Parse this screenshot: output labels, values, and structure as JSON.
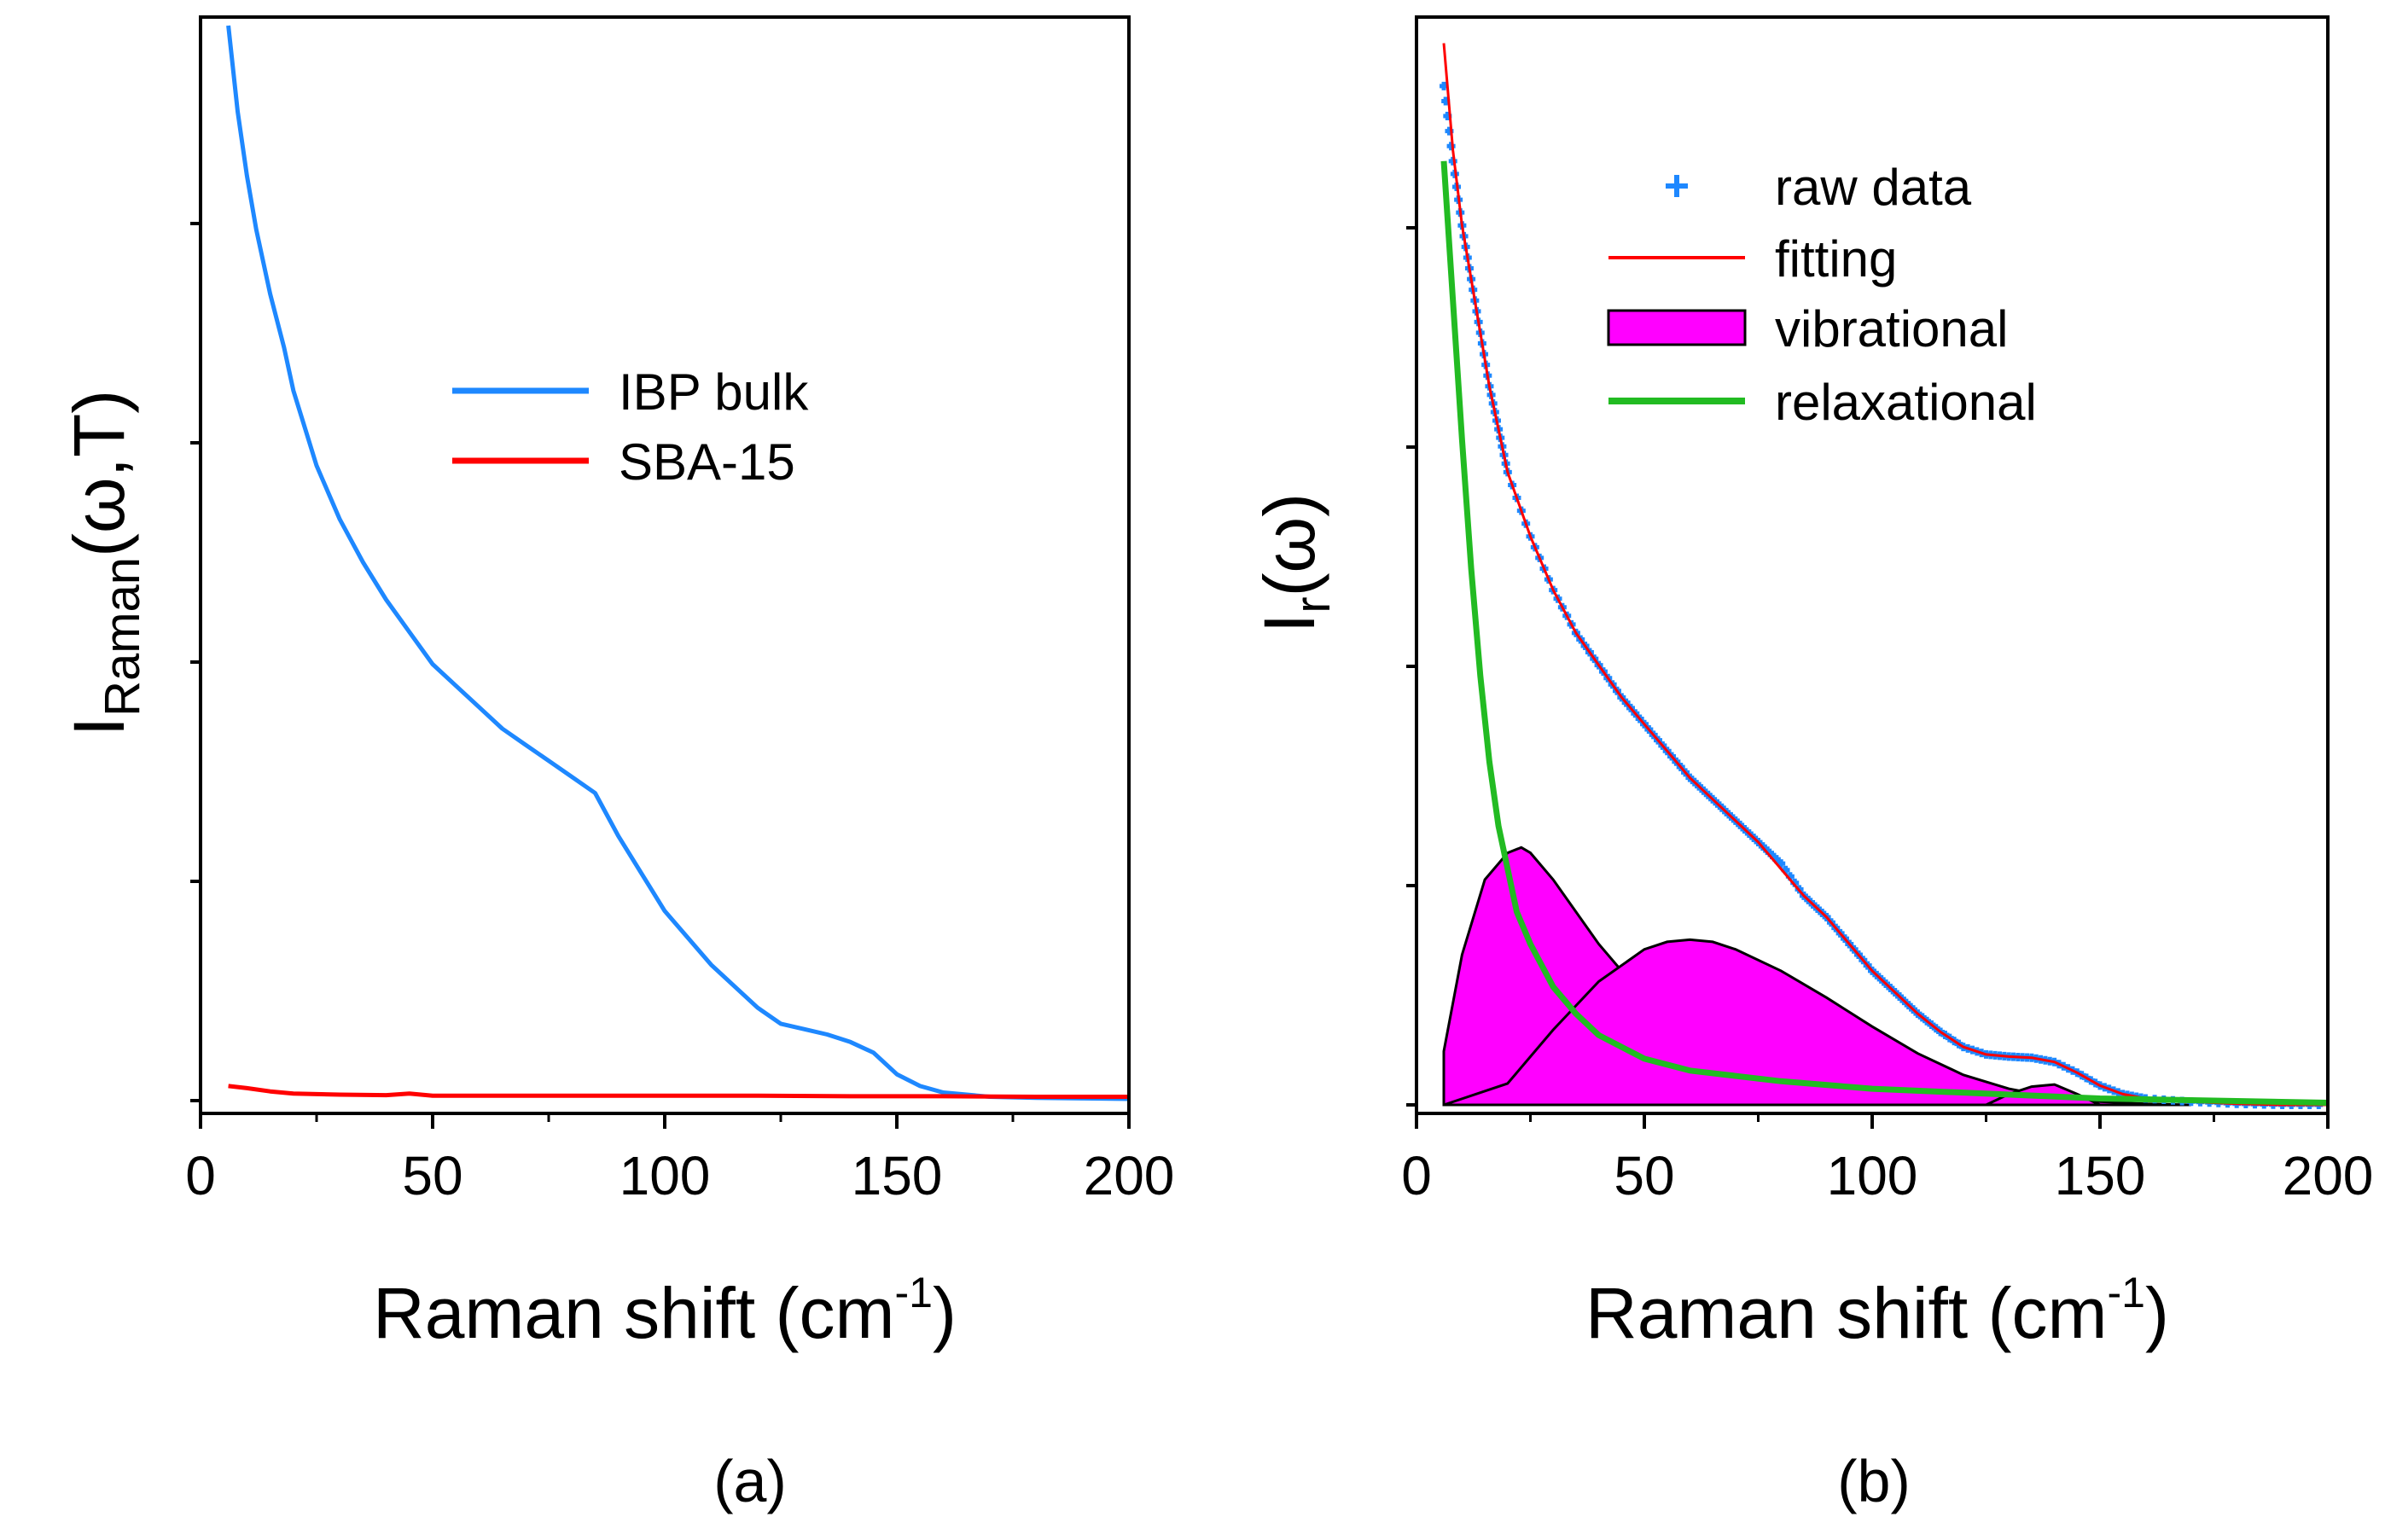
{
  "chart_data": [
    {
      "type": "line",
      "panel_label": "(a)",
      "xlabel": {
        "main": "Raman shift (cm",
        "sup": "-1",
        "close": ")"
      },
      "ylabel": {
        "main": "I",
        "sub": "Raman",
        "rest": "(ω,T)"
      },
      "xlim": [
        0,
        200
      ],
      "ylim": [
        0,
        100
      ],
      "xticks": [
        0,
        50,
        100,
        150,
        200
      ],
      "xtick_labels": [
        "0",
        "50",
        "100",
        "150",
        "200"
      ],
      "yticks_shown_without_labels": true,
      "legend_position": "center-right",
      "series": [
        {
          "name": "IBP bulk",
          "color": "#1e88ff",
          "x": [
            6,
            8,
            10,
            12,
            15,
            18,
            20,
            25,
            30,
            35,
            40,
            45,
            50,
            55,
            60,
            65,
            70,
            75,
            80,
            85,
            90,
            95,
            100,
            105,
            110,
            115,
            120,
            125,
            130,
            135,
            140,
            145,
            150,
            155,
            160,
            170,
            180,
            190,
            200
          ],
          "y": [
            100,
            92,
            86,
            81,
            75,
            70,
            66,
            59,
            54,
            50,
            46.5,
            43.5,
            40.5,
            38.5,
            36.5,
            34.5,
            33,
            31.5,
            30,
            28.5,
            24.5,
            21,
            17.5,
            15,
            12.5,
            10.5,
            8.5,
            7,
            6.5,
            6,
            5.3,
            4.3,
            2.3,
            1.2,
            0.6,
            0.2,
            0.1,
            0.05,
            0
          ]
        },
        {
          "name": "SBA-15",
          "color": "#ff0000",
          "x": [
            6,
            10,
            15,
            20,
            30,
            40,
            45,
            50,
            60,
            80,
            100,
            120,
            140,
            160,
            180,
            200
          ],
          "y": [
            1.2,
            1.0,
            0.7,
            0.5,
            0.4,
            0.35,
            0.5,
            0.3,
            0.3,
            0.3,
            0.3,
            0.3,
            0.25,
            0.25,
            0.2,
            0.2
          ]
        }
      ]
    },
    {
      "type": "line",
      "panel_label": "(b)",
      "xlabel": {
        "main": "Raman shift (cm",
        "sup": "-1",
        "close": ")"
      },
      "ylabel": {
        "main": "I",
        "sub": "r",
        "rest": "(ω)"
      },
      "xlim": [
        0,
        200
      ],
      "ylim": [
        0,
        100
      ],
      "xticks": [
        0,
        50,
        100,
        150,
        200
      ],
      "xtick_labels": [
        "0",
        "50",
        "100",
        "150",
        "200"
      ],
      "yticks_shown_without_labels": true,
      "legend_position": "top-right",
      "series": [
        {
          "name": "raw data",
          "style": "scatter",
          "color": "#1e88ff",
          "x": [
            6,
            8,
            10,
            12,
            14,
            16,
            18,
            20,
            25,
            30,
            35,
            40,
            45,
            50,
            55,
            60,
            65,
            70,
            75,
            80,
            85,
            90,
            95,
            100,
            105,
            110,
            115,
            120,
            125,
            130,
            135,
            140,
            145,
            150,
            155,
            160,
            170,
            180,
            190,
            200
          ],
          "y": [
            95,
            88,
            82,
            77,
            72,
            67,
            63,
            59,
            53,
            48,
            44,
            41,
            38,
            35.5,
            33,
            30.5,
            28.5,
            26.5,
            24.5,
            22.5,
            19.5,
            17.5,
            15,
            12.5,
            10.5,
            8.5,
            6.8,
            5.4,
            4.7,
            4.5,
            4.4,
            4.0,
            3.0,
            1.8,
            1.0,
            0.6,
            0.3,
            0.1,
            0,
            0
          ]
        },
        {
          "name": "fitting",
          "color": "#ff0000",
          "x": [
            6,
            8,
            10,
            12,
            14,
            16,
            18,
            20,
            25,
            30,
            35,
            40,
            45,
            50,
            55,
            60,
            65,
            70,
            75,
            80,
            85,
            90,
            95,
            100,
            105,
            110,
            115,
            120,
            125,
            130,
            135,
            140,
            145,
            150,
            155,
            160,
            170,
            180,
            190,
            200
          ],
          "y": [
            99,
            89,
            82,
            77,
            72,
            67,
            63,
            59,
            53,
            48,
            44,
            41,
            38,
            35.5,
            33,
            30.5,
            28.5,
            26.5,
            24.5,
            22,
            19.5,
            17.5,
            15,
            12.5,
            10.5,
            8.5,
            6.8,
            5.4,
            4.7,
            4.5,
            4.4,
            4.0,
            3.0,
            1.8,
            1.0,
            0.6,
            0.3,
            0.1,
            0,
            0
          ]
        },
        {
          "name": "vibrational",
          "style": "filled",
          "color": "#ff00ff",
          "components": [
            {
              "x": [
                6,
                10,
                15,
                20,
                23,
                25,
                30,
                35,
                40,
                45,
                50,
                55,
                60,
                65,
                70,
                80,
                90,
                100,
                110,
                120,
                130
              ],
              "y": [
                5,
                14,
                21,
                23.5,
                24,
                23.5,
                21,
                18,
                15,
                12.5,
                10.5,
                8.5,
                7,
                5.5,
                4.5,
                3,
                2,
                1.2,
                0.8,
                0.4,
                0
              ]
            },
            {
              "x": [
                6,
                20,
                30,
                40,
                50,
                55,
                60,
                65,
                70,
                80,
                90,
                100,
                110,
                120,
                130,
                140,
                150,
                160,
                170
              ],
              "y": [
                0,
                2,
                7,
                11.5,
                14.5,
                15.2,
                15.4,
                15.2,
                14.5,
                12.5,
                10,
                7.3,
                4.8,
                2.8,
                1.5,
                0.7,
                0.3,
                0.1,
                0
              ]
            },
            {
              "x": [
                125,
                130,
                135,
                140,
                145,
                150
              ],
              "y": [
                0,
                1,
                1.7,
                1.9,
                1,
                0
              ]
            }
          ]
        },
        {
          "name": "relaxational",
          "color": "#22bb22",
          "x": [
            6,
            8,
            10,
            12,
            14,
            16,
            18,
            20,
            22,
            25,
            30,
            35,
            40,
            50,
            60,
            80,
            100,
            150,
            200
          ],
          "y": [
            88,
            75,
            62,
            50,
            40,
            32,
            26,
            22,
            18,
            15,
            11,
            8.5,
            6.5,
            4.3,
            3.2,
            2.2,
            1.5,
            0.6,
            0.2
          ]
        }
      ]
    }
  ]
}
